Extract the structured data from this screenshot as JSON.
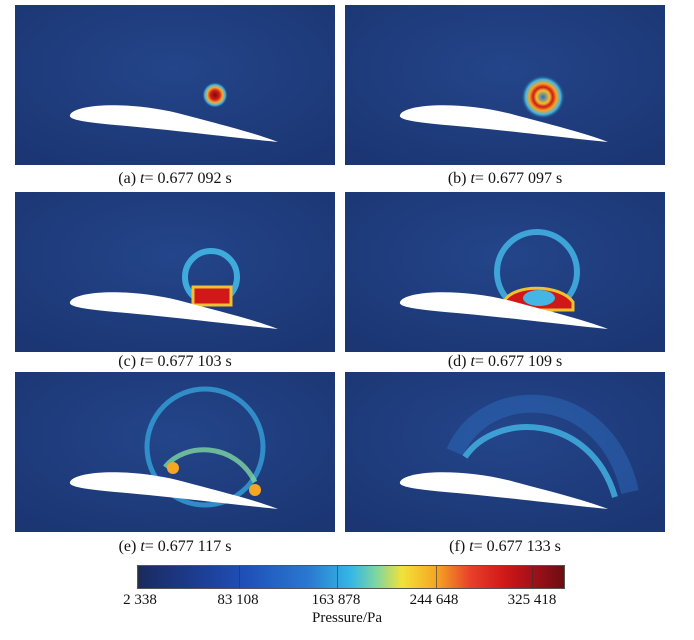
{
  "panels": [
    {
      "caption_prefix": "(a)",
      "t_symbol": "t",
      "caption_rest": "= 0.677 092 s"
    },
    {
      "caption_prefix": "(b)",
      "t_symbol": "t",
      "caption_rest": "= 0.677 097 s"
    },
    {
      "caption_prefix": "(c)",
      "t_symbol": "t",
      "caption_rest": "= 0.677 103 s"
    },
    {
      "caption_prefix": "(d)",
      "t_symbol": "t",
      "caption_rest": "= 0.677 109 s"
    },
    {
      "caption_prefix": "(e)",
      "t_symbol": "t",
      "caption_rest": "= 0.677 117 s"
    },
    {
      "caption_prefix": "(f)",
      "t_symbol": "t",
      "caption_rest": "= 0.677 133 s"
    }
  ],
  "colorbar": {
    "ticks": [
      "2 338",
      "83 108",
      "163 878",
      "244 648",
      "325 418"
    ],
    "title": "Pressure/Pa"
  },
  "colors": {
    "background": "#1d3c7a",
    "airfoil": "#ffffff",
    "ring": "#43b6e6",
    "high": "#d01818"
  }
}
